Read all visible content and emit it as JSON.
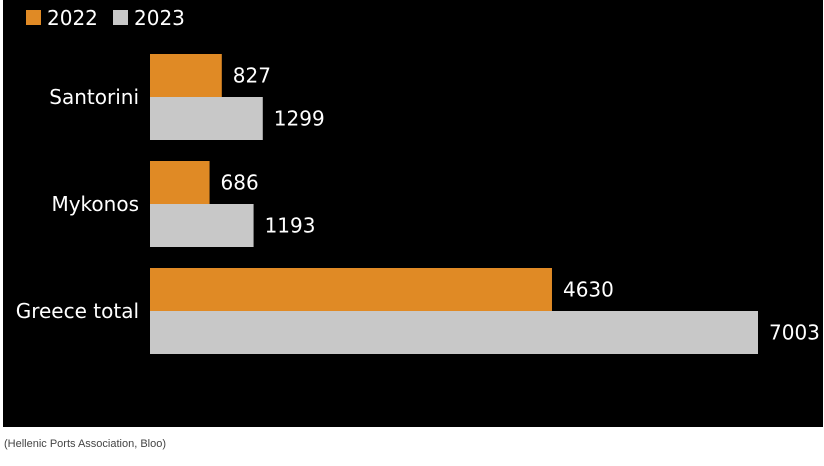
{
  "caption": "(Hellenic Ports Association, Bloo)",
  "colors": {
    "background": "#000000",
    "text": "#ffffff",
    "series_2022": "#e08a25",
    "series_2023": "#c8c8c8"
  },
  "chart_data": {
    "type": "bar",
    "orientation": "horizontal",
    "categories": [
      "Santorini",
      "Mykonos",
      "Greece total"
    ],
    "series": [
      {
        "name": "2022",
        "values": [
          827,
          686,
          4630
        ],
        "color": "#e08a25"
      },
      {
        "name": "2023",
        "values": [
          1299,
          1193,
          7003
        ],
        "color": "#c8c8c8"
      }
    ],
    "title": "",
    "xlabel": "",
    "ylabel": "",
    "xlim": [
      0,
      7003
    ],
    "grid": false,
    "legend_position": "top-left",
    "data_labels": true
  }
}
